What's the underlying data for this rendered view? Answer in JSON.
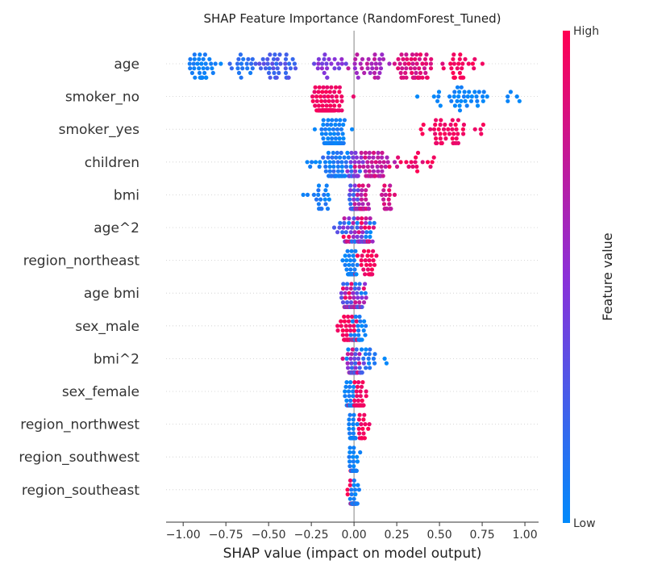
{
  "chart_data": {
    "type": "scatter",
    "title": "SHAP Feature Importance (RandomForest_Tuned)",
    "xlabel": "SHAP value (impact on model output)",
    "ylabel": "",
    "xlim": [
      -1.1,
      1.08
    ],
    "xticks": [
      -1.0,
      -0.75,
      -0.5,
      -0.25,
      0.0,
      0.25,
      0.5,
      0.75,
      1.0
    ],
    "xtick_labels": [
      "−1.00",
      "−0.75",
      "−0.50",
      "−0.25",
      "0.00",
      "0.25",
      "0.50",
      "0.75",
      "1.00"
    ],
    "colorbar": {
      "label": "Feature value",
      "high": "High",
      "low": "Low",
      "low_color": "#008afb",
      "high_color": "#ff0052",
      "mid_color": "#8b30d8"
    },
    "zero_line": 0.0,
    "features": [
      {
        "name": "age",
        "clusters": [
          {
            "c": -0.88,
            "w": 0.09,
            "n": 40,
            "v": [
              0.0,
              0.1
            ]
          },
          {
            "c": -0.65,
            "w": 0.07,
            "n": 18,
            "v": [
              0.05,
              0.2
            ]
          },
          {
            "c": -0.45,
            "w": 0.13,
            "n": 40,
            "v": [
              0.15,
              0.35
            ]
          },
          {
            "c": -0.15,
            "w": 0.12,
            "n": 24,
            "v": [
              0.35,
              0.55
            ]
          },
          {
            "c": 0.1,
            "w": 0.1,
            "n": 30,
            "v": [
              0.55,
              0.75
            ]
          },
          {
            "c": 0.35,
            "w": 0.12,
            "n": 55,
            "v": [
              0.75,
              0.95
            ]
          },
          {
            "c": 0.62,
            "w": 0.08,
            "n": 28,
            "v": [
              0.9,
              1.0
            ]
          }
        ]
      },
      {
        "name": "smoker_no",
        "clusters": [
          {
            "c": -0.15,
            "w": 0.07,
            "n": 110,
            "v": [
              0.9,
              1.0
            ]
          },
          {
            "c": 0.65,
            "w": 0.15,
            "n": 36,
            "v": [
              0.0,
              0.08
            ]
          },
          {
            "c": 0.9,
            "w": 0.06,
            "n": 5,
            "v": [
              0.0,
              0.05
            ]
          }
        ]
      },
      {
        "name": "smoker_yes",
        "clusters": [
          {
            "c": -0.12,
            "w": 0.06,
            "n": 110,
            "v": [
              0.0,
              0.1
            ]
          },
          {
            "c": 0.52,
            "w": 0.14,
            "n": 46,
            "v": [
              0.9,
              1.0
            ]
          },
          {
            "c": 0.74,
            "w": 0.03,
            "n": 4,
            "v": [
              0.9,
              1.0
            ]
          }
        ]
      },
      {
        "name": "children",
        "clusters": [
          {
            "c": -0.1,
            "w": 0.1,
            "n": 80,
            "v": [
              0.0,
              0.2
            ]
          },
          {
            "c": 0.0,
            "w": 0.04,
            "n": 30,
            "v": [
              0.35,
              0.55
            ]
          },
          {
            "c": 0.12,
            "w": 0.09,
            "n": 55,
            "v": [
              0.6,
              0.85
            ]
          },
          {
            "c": 0.3,
            "w": 0.1,
            "n": 14,
            "v": [
              0.85,
              1.0
            ]
          },
          {
            "c": 0.45,
            "w": 0.05,
            "n": 3,
            "v": [
              0.9,
              1.0
            ]
          },
          {
            "c": -0.26,
            "w": 0.03,
            "n": 2,
            "v": [
              0.0,
              0.1
            ]
          }
        ]
      },
      {
        "name": "bmi",
        "clusters": [
          {
            "c": -0.2,
            "w": 0.05,
            "n": 18,
            "v": [
              0.0,
              0.15
            ]
          },
          {
            "c": -0.01,
            "w": 0.03,
            "n": 40,
            "v": [
              0.1,
              0.5
            ]
          },
          {
            "c": 0.05,
            "w": 0.04,
            "n": 40,
            "v": [
              0.6,
              0.9
            ]
          },
          {
            "c": 0.2,
            "w": 0.05,
            "n": 20,
            "v": [
              0.7,
              0.95
            ]
          },
          {
            "c": -0.28,
            "w": 0.02,
            "n": 2,
            "v": [
              0.0,
              0.1
            ]
          }
        ]
      },
      {
        "name": "age^2",
        "clusters": [
          {
            "c": 0.02,
            "w": 0.1,
            "n": 110,
            "v": [
              0.0,
              1.0
            ]
          }
        ]
      },
      {
        "name": "region_northeast",
        "clusters": [
          {
            "c": -0.02,
            "w": 0.03,
            "n": 70,
            "v": [
              0.0,
              0.1
            ]
          },
          {
            "c": 0.07,
            "w": 0.06,
            "n": 30,
            "v": [
              0.9,
              1.0
            ]
          }
        ]
      },
      {
        "name": "age bmi",
        "clusters": [
          {
            "c": 0.0,
            "w": 0.06,
            "n": 100,
            "v": [
              0.0,
              1.0
            ]
          }
        ]
      },
      {
        "name": "sex_male",
        "clusters": [
          {
            "c": -0.03,
            "w": 0.05,
            "n": 60,
            "v": [
              0.9,
              1.0
            ]
          },
          {
            "c": 0.02,
            "w": 0.04,
            "n": 40,
            "v": [
              0.0,
              0.1
            ]
          }
        ]
      },
      {
        "name": "bmi^2",
        "clusters": [
          {
            "c": 0.0,
            "w": 0.04,
            "n": 70,
            "v": [
              0.0,
              0.9
            ]
          },
          {
            "c": 0.1,
            "w": 0.05,
            "n": 12,
            "v": [
              0.0,
              0.15
            ]
          },
          {
            "c": 0.18,
            "w": 0.01,
            "n": 2,
            "v": [
              0.0,
              0.1
            ]
          }
        ]
      },
      {
        "name": "sex_female",
        "clusters": [
          {
            "c": -0.02,
            "w": 0.03,
            "n": 50,
            "v": [
              0.0,
              0.1
            ]
          },
          {
            "c": 0.03,
            "w": 0.03,
            "n": 50,
            "v": [
              0.9,
              1.0
            ]
          }
        ]
      },
      {
        "name": "region_northwest",
        "clusters": [
          {
            "c": -0.01,
            "w": 0.02,
            "n": 60,
            "v": [
              0.0,
              0.1
            ]
          },
          {
            "c": 0.05,
            "w": 0.03,
            "n": 20,
            "v": [
              0.9,
              1.0
            ]
          }
        ]
      },
      {
        "name": "region_southwest",
        "clusters": [
          {
            "c": 0.0,
            "w": 0.02,
            "n": 70,
            "v": [
              0.0,
              0.1
            ]
          },
          {
            "c": -0.01,
            "w": 0.01,
            "n": 10,
            "v": [
              0.9,
              1.0
            ]
          }
        ]
      },
      {
        "name": "region_southeast",
        "clusters": [
          {
            "c": 0.0,
            "w": 0.02,
            "n": 60,
            "v": [
              0.0,
              0.1
            ]
          },
          {
            "c": -0.01,
            "w": 0.02,
            "n": 15,
            "v": [
              0.9,
              1.0
            ]
          }
        ]
      }
    ]
  }
}
